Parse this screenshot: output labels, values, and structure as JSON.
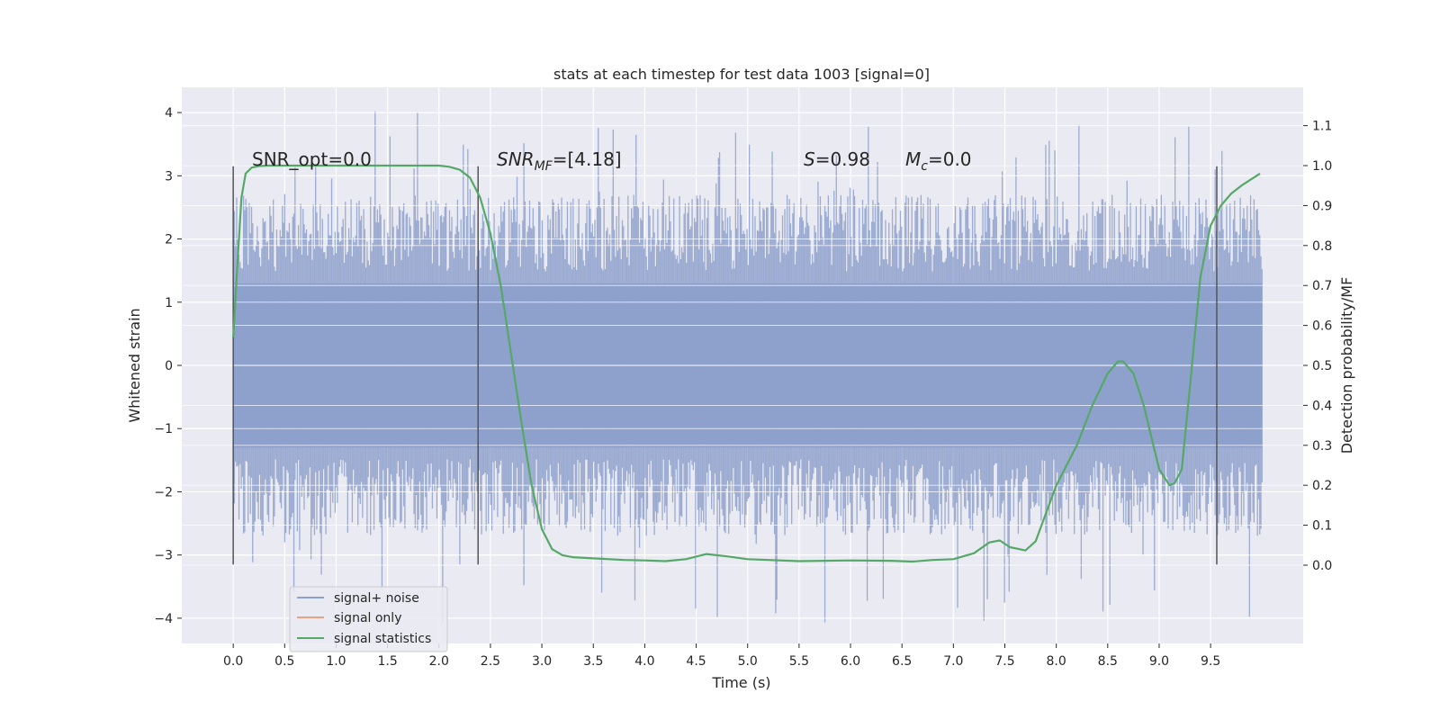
{
  "chart_data": {
    "type": "line",
    "title": "stats at each timestep for test data 1003 [signal=0]",
    "xlabel": "Time (s)",
    "ylabel": "Whitened strain",
    "ylabel_right": "Detection probability/MF",
    "xlim": [
      -0.5,
      10.4
    ],
    "ylim": [
      -4.4,
      4.4
    ],
    "ylim_right": [
      -0.196,
      1.196
    ],
    "x_ticks": [
      "0.0",
      "0.5",
      "1.0",
      "1.5",
      "2.0",
      "2.5",
      "3.0",
      "3.5",
      "4.0",
      "4.5",
      "5.0",
      "5.5",
      "6.0",
      "6.5",
      "7.0",
      "7.5",
      "8.0",
      "8.5",
      "9.0",
      "9.5"
    ],
    "y_ticks": [
      "4",
      "3",
      "2",
      "1",
      "0",
      "−1",
      "−2",
      "−3",
      "−4"
    ],
    "y_ticks_right": [
      "1.1",
      "1.0",
      "0.9",
      "0.8",
      "0.7",
      "0.6",
      "0.5",
      "0.4",
      "0.3",
      "0.2",
      "0.1",
      "0.0"
    ],
    "grid": true,
    "legend_position": "lower-left",
    "annotations": {
      "snr_opt": "SNR_opt=0.0",
      "snr_mf_main": "SNR",
      "snr_mf_sub": "MF",
      "snr_mf_value": "=[4.18]",
      "s_label": "S",
      "s_value": "=0.98",
      "mc_label": "M",
      "mc_sub": "c",
      "mc_value": "=0.0"
    },
    "vertical_markers_s": [
      0.0,
      2.38,
      9.56
    ],
    "series": [
      {
        "name": "signal+ noise",
        "color": "#8da0cb",
        "kind": "dense noise",
        "x_range": [
          0.0,
          10.0
        ],
        "core_band": [
          -1.3,
          1.3
        ],
        "typical_range": [
          -2.7,
          2.7
        ],
        "extremes": [
          -4.1,
          4.05
        ]
      },
      {
        "name": "signal only",
        "color": "#e8a283",
        "values": []
      },
      {
        "name": "signal statistics",
        "color": "#55a868",
        "axis": "right",
        "x": [
          0.0,
          0.04,
          0.08,
          0.12,
          0.18,
          0.25,
          0.35,
          0.5,
          1.0,
          1.5,
          2.0,
          2.1,
          2.2,
          2.3,
          2.4,
          2.5,
          2.6,
          2.7,
          2.8,
          2.9,
          3.0,
          3.1,
          3.2,
          3.3,
          3.5,
          3.8,
          4.0,
          4.2,
          4.4,
          4.6,
          4.8,
          5.0,
          5.5,
          6.0,
          6.4,
          6.6,
          6.8,
          7.0,
          7.2,
          7.35,
          7.45,
          7.55,
          7.7,
          7.8,
          7.9,
          8.0,
          8.2,
          8.35,
          8.5,
          8.6,
          8.65,
          8.75,
          8.85,
          9.0,
          9.1,
          9.15,
          9.22,
          9.3,
          9.4,
          9.5,
          9.6,
          9.7,
          9.8,
          9.98
        ],
        "values": [
          0.57,
          0.75,
          0.92,
          0.98,
          0.995,
          0.999,
          1.0,
          1.0,
          1.0,
          1.0,
          1.0,
          0.997,
          0.99,
          0.97,
          0.92,
          0.83,
          0.7,
          0.53,
          0.36,
          0.2,
          0.09,
          0.04,
          0.025,
          0.02,
          0.017,
          0.013,
          0.012,
          0.01,
          0.015,
          0.028,
          0.022,
          0.015,
          0.01,
          0.012,
          0.011,
          0.009,
          0.013,
          0.015,
          0.03,
          0.057,
          0.062,
          0.045,
          0.037,
          0.06,
          0.13,
          0.2,
          0.3,
          0.4,
          0.48,
          0.51,
          0.51,
          0.48,
          0.4,
          0.24,
          0.2,
          0.205,
          0.24,
          0.45,
          0.72,
          0.85,
          0.9,
          0.93,
          0.95,
          0.98
        ]
      }
    ]
  }
}
